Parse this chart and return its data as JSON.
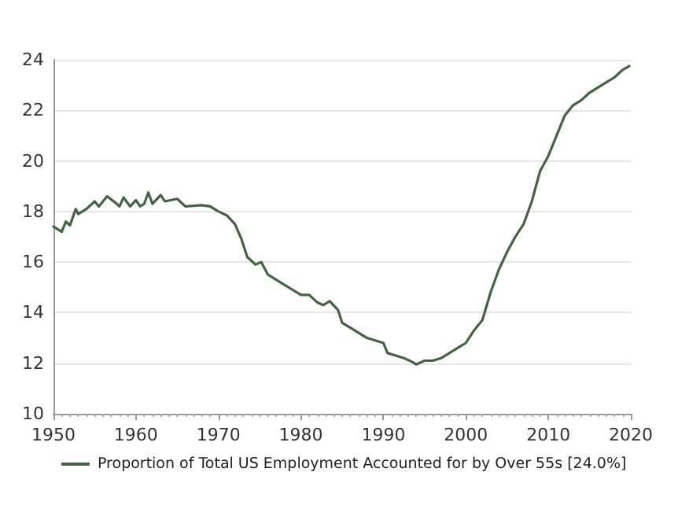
{
  "chart_data": {
    "type": "line",
    "xlim": [
      1950,
      2020
    ],
    "xticks": [
      1950,
      1960,
      1970,
      1980,
      1990,
      2000,
      2010,
      2020
    ],
    "ylim": [
      10,
      24
    ],
    "yticks": [
      10,
      12,
      14,
      16,
      18,
      20,
      22,
      24
    ],
    "grid": "y",
    "legend": "bottom",
    "marker": "none",
    "line_style": "solid",
    "series": [
      {
        "name": "Proportion of Total US Employment Accounted for by Over 55s [24.0%]",
        "color": "#436343",
        "x": [
          1950,
          1951,
          1951.5,
          1952,
          1952.7,
          1953,
          1954,
          1955,
          1955.5,
          1956.5,
          1957.5,
          1958,
          1958.5,
          1959.3,
          1960,
          1960.5,
          1961,
          1961.5,
          1962,
          1963,
          1963.5,
          1965,
          1966,
          1968,
          1969,
          1970,
          1971,
          1972,
          1972.8,
          1973.5,
          1974.5,
          1975.2,
          1976,
          1977,
          1978,
          1979,
          1980,
          1981,
          1982,
          1982.7,
          1983.5,
          1984.5,
          1985,
          1986,
          1987,
          1988,
          1989,
          1990,
          1990.5,
          1991.5,
          1992.5,
          1993.5,
          1994,
          1995,
          1996,
          1997,
          1998,
          1999,
          2000,
          2001,
          2002,
          2003,
          2004,
          2005,
          2006,
          2007,
          2008,
          2009,
          2010,
          2011,
          2012,
          2013,
          2014,
          2015,
          2016,
          2017,
          2018,
          2019,
          2019.8
        ],
        "values": [
          17.4,
          17.2,
          17.6,
          17.45,
          18.1,
          17.9,
          18.1,
          18.4,
          18.2,
          18.6,
          18.35,
          18.2,
          18.55,
          18.2,
          18.45,
          18.2,
          18.3,
          18.75,
          18.3,
          18.65,
          18.4,
          18.5,
          18.2,
          18.25,
          18.2,
          18.0,
          17.85,
          17.5,
          16.9,
          16.2,
          15.9,
          16.0,
          15.5,
          15.3,
          15.1,
          14.9,
          14.7,
          14.7,
          14.4,
          14.3,
          14.45,
          14.1,
          13.6,
          13.4,
          13.2,
          13.0,
          12.9,
          12.8,
          12.4,
          12.3,
          12.2,
          12.05,
          11.95,
          12.1,
          12.1,
          12.2,
          12.4,
          12.6,
          12.8,
          13.3,
          13.7,
          14.8,
          15.7,
          16.4,
          17.0,
          17.5,
          18.4,
          19.6,
          20.2,
          21.0,
          21.8,
          22.2,
          22.4,
          22.7,
          22.9,
          23.1,
          23.3,
          23.6,
          23.75
        ]
      }
    ]
  }
}
